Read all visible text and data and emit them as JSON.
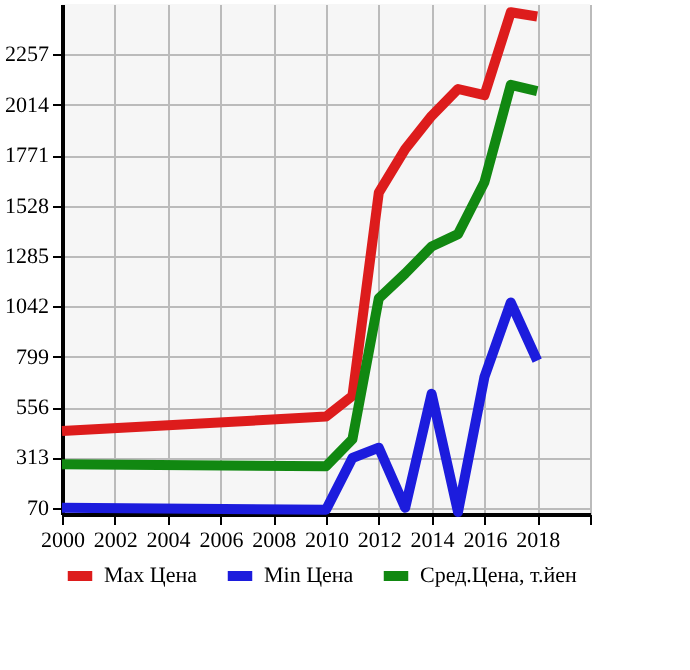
{
  "chart_data": {
    "type": "line",
    "x": [
      2000,
      2010,
      2011,
      2012,
      2013,
      2014,
      2015,
      2016,
      2017,
      2018
    ],
    "series": [
      {
        "name": "Max Цена",
        "color": "#dd1c1c",
        "values": [
          440,
          510,
          610,
          1590,
          1800,
          1960,
          2090,
          2060,
          2460,
          2440
        ]
      },
      {
        "name": "Min Цена",
        "color": "#1c1cdd",
        "values": [
          70,
          60,
          310,
          360,
          70,
          620,
          50,
          700,
          1060,
          780
        ]
      },
      {
        "name": "Сред.Цена, т.йен",
        "color": "#118811",
        "values": [
          280,
          270,
          400,
          1080,
          1200,
          1330,
          1390,
          1640,
          2110,
          2080
        ]
      }
    ],
    "xlim": [
      2000,
      2020
    ],
    "xticks": [
      2000,
      2002,
      2004,
      2006,
      2008,
      2010,
      2012,
      2014,
      2016,
      2018,
      {
        "value": 2020,
        "label": null
      }
    ],
    "ylim": [
      40,
      2500
    ],
    "yticks": [
      70,
      313,
      556,
      799,
      1042,
      1285,
      1528,
      1771,
      2014,
      2257
    ],
    "grid": true,
    "legend": "bottom",
    "marker": "none",
    "line_style": "solid"
  }
}
